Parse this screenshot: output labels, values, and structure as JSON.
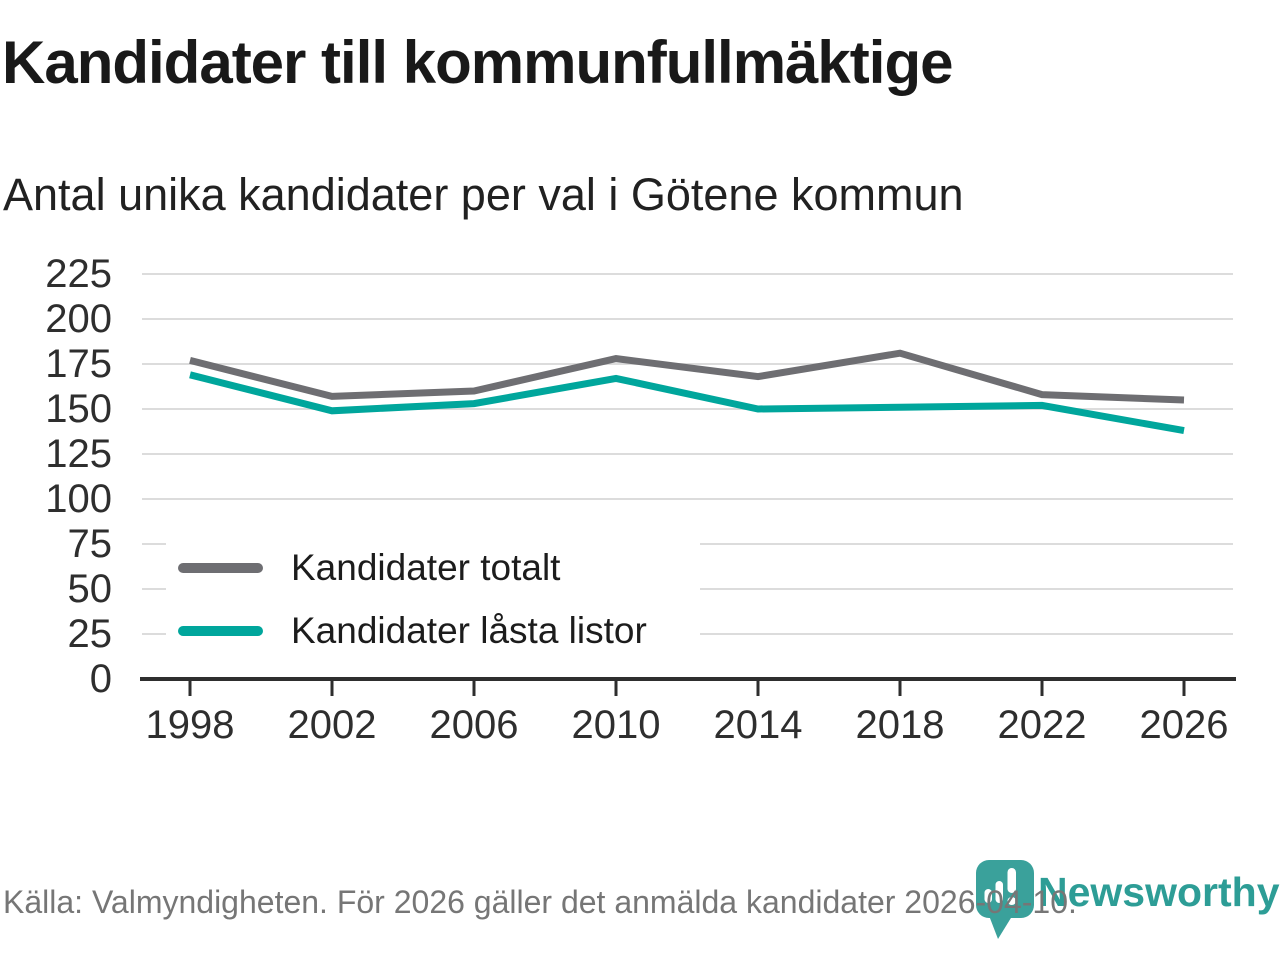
{
  "header": {
    "title": "Kandidater till kommunfullmäktige",
    "subtitle": "Antal unika kandidater per val i Götene kommun"
  },
  "chart_data": {
    "type": "line",
    "title": "Kandidater till kommunfullmäktige",
    "subtitle": "Antal unika kandidater per val i Götene kommun",
    "x": [
      1998,
      2002,
      2006,
      2010,
      2014,
      2018,
      2022,
      2026
    ],
    "series": [
      {
        "name": "Kandidater totalt",
        "color": "#6e6e72",
        "values": [
          177,
          157,
          160,
          178,
          168,
          181,
          158,
          155
        ]
      },
      {
        "name": "Kandidater låsta listor",
        "color": "#00a69c",
        "values": [
          169,
          149,
          153,
          167,
          150,
          151,
          152,
          138
        ]
      }
    ],
    "ylim": [
      0,
      225
    ],
    "yticks": [
      0,
      25,
      50,
      75,
      100,
      125,
      150,
      175,
      200,
      225
    ],
    "grid": true,
    "legend_position": "inside-bottom-left",
    "grid_color": "#dcdcdc",
    "axis_color": "#2e2e2e",
    "tick_label_color": "#2e2e2e"
  },
  "footer": {
    "source": "Källa: Valmyndigheten. För 2026 gäller det anmälda kandidater 2026-04-10.",
    "brand": "Newsworthy",
    "brand_color": "#2d9d96",
    "brand_icon": "newsworthy-pin-barchart-icon",
    "brand_icon_color": "#3aa19b"
  }
}
